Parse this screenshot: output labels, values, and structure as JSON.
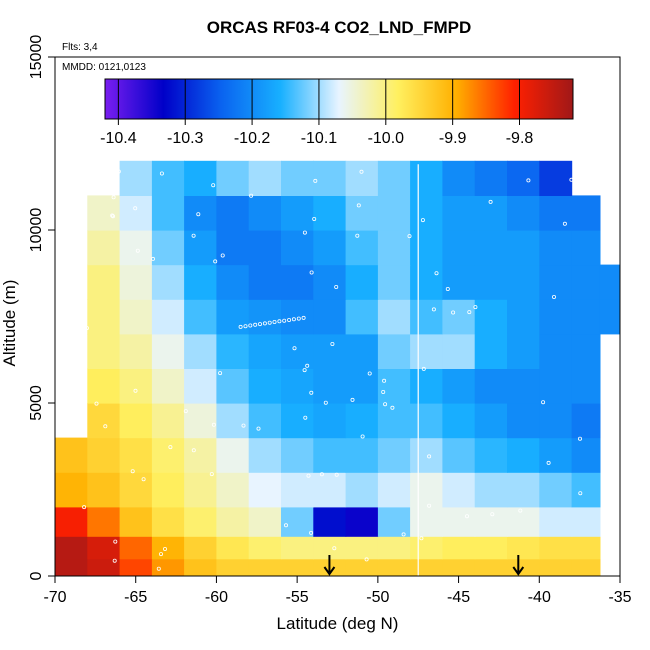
{
  "chart_data": {
    "type": "heatmap",
    "title": "ORCAS RF03-4 CO2_LND_FMPD",
    "annotations": {
      "flights": "Flts: 3,4",
      "dates": "MMDD: 0121,0123"
    },
    "xlabel": "Latitude (deg N)",
    "ylabel": "Altitude (m)",
    "xlim": [
      -70,
      -35
    ],
    "ylim": [
      0,
      15000
    ],
    "x_ticks": [
      -70,
      -65,
      -60,
      -55,
      -50,
      -45,
      -40,
      -35
    ],
    "y_ticks": [
      0,
      5000,
      10000,
      15000
    ],
    "colorbar": {
      "ticks": [
        -10.4,
        -10.3,
        -10.2,
        -10.1,
        -10.0,
        -9.9,
        -9.8
      ],
      "range": [
        -10.42,
        -9.72
      ],
      "colors": [
        "#7a1ef0",
        "#0000c8",
        "#0a64f0",
        "#18b0ff",
        "#e8f4ff",
        "#fff060",
        "#ffb000",
        "#ff2000",
        "#a01818"
      ]
    },
    "field": {
      "altitudes": [
        200,
        800,
        1500,
        2500,
        3500,
        4500,
        5500,
        6500,
        7500,
        8500,
        9500,
        10500,
        11500
      ],
      "latitudes": [
        -69,
        -67,
        -65,
        -63,
        -61,
        -59,
        -57,
        -55,
        -53,
        -51,
        -49,
        -47,
        -45,
        -43,
        -41,
        -39,
        -37,
        -35.5
      ],
      "values": [
        [
          -9.74,
          -9.76,
          -9.83,
          -9.88,
          -9.92,
          -9.94,
          -9.94,
          -9.94,
          -9.94,
          -9.94,
          -9.94,
          -9.94,
          -9.94,
          -9.94,
          -9.94,
          -9.94,
          -9.94,
          null
        ],
        [
          -9.74,
          -9.77,
          -9.85,
          -9.9,
          -9.94,
          -9.97,
          -9.99,
          -10.0,
          -10.0,
          -10.0,
          -10.0,
          -9.99,
          -9.98,
          -9.98,
          -9.97,
          -9.96,
          -9.96,
          null
        ],
        [
          -9.8,
          -9.86,
          -9.92,
          -9.96,
          -9.99,
          -10.02,
          -10.04,
          -10.12,
          -10.32,
          -10.34,
          -10.12,
          -10.06,
          -10.06,
          -10.06,
          -10.06,
          -10.08,
          -10.08,
          null
        ],
        [
          -9.9,
          -9.92,
          -9.95,
          -9.98,
          -10.01,
          -10.04,
          -10.07,
          -10.08,
          -10.08,
          -10.1,
          -10.08,
          -10.06,
          -10.08,
          -10.1,
          -10.1,
          -10.12,
          -10.14,
          null
        ],
        [
          -9.92,
          -9.94,
          -9.96,
          -9.99,
          -10.02,
          -10.06,
          -10.1,
          -10.12,
          -10.14,
          -10.14,
          -10.12,
          -10.1,
          -10.13,
          -10.15,
          -10.16,
          -10.18,
          -10.2,
          null
        ],
        [
          null,
          -9.95,
          -9.98,
          -10.01,
          -10.05,
          -10.1,
          -10.14,
          -10.16,
          -10.17,
          -10.16,
          -10.14,
          -10.14,
          -10.16,
          -10.18,
          -10.2,
          -10.2,
          -10.22,
          null
        ],
        [
          null,
          -9.98,
          -10.0,
          -10.04,
          -10.08,
          -10.13,
          -10.16,
          -10.17,
          -10.18,
          -10.18,
          -10.14,
          -10.16,
          -10.18,
          -10.2,
          -10.2,
          -10.2,
          -10.2,
          null
        ],
        [
          null,
          -10.0,
          -10.02,
          -10.06,
          -10.1,
          -10.15,
          -10.17,
          -10.18,
          -10.18,
          -10.18,
          -10.12,
          -10.1,
          -10.1,
          -10.16,
          -10.18,
          -10.2,
          -10.2,
          null
        ],
        [
          null,
          -10.0,
          -10.04,
          -10.08,
          -10.14,
          -10.18,
          -10.19,
          -10.2,
          -10.2,
          -10.14,
          -10.1,
          -10.14,
          -10.12,
          -10.16,
          -10.18,
          -10.2,
          -10.2,
          -10.2
        ],
        [
          null,
          -10.0,
          -10.05,
          -10.1,
          -10.16,
          -10.2,
          -10.22,
          -10.22,
          -10.2,
          -10.16,
          -10.12,
          -10.16,
          -10.18,
          -10.18,
          -10.18,
          -10.2,
          -10.2,
          -10.2
        ],
        [
          null,
          -10.02,
          -10.06,
          -10.12,
          -10.18,
          -10.22,
          -10.22,
          -10.2,
          -10.18,
          -10.14,
          -10.12,
          -10.16,
          -10.18,
          -10.18,
          -10.18,
          -10.2,
          -10.2,
          null
        ],
        [
          null,
          -10.04,
          -10.08,
          -10.14,
          -10.2,
          -10.22,
          -10.2,
          -10.18,
          -10.16,
          -10.12,
          -10.12,
          -10.16,
          -10.18,
          -10.18,
          -10.2,
          -10.22,
          -10.22,
          null
        ],
        [
          null,
          null,
          -10.1,
          -10.14,
          -10.16,
          -10.12,
          -10.1,
          -10.12,
          -10.12,
          -10.1,
          -10.12,
          -10.16,
          -10.2,
          -10.22,
          -10.24,
          -10.28,
          null,
          null
        ]
      ]
    },
    "vertical_line_x": -47.5,
    "arrows_x": [
      -53,
      -41.3
    ]
  }
}
